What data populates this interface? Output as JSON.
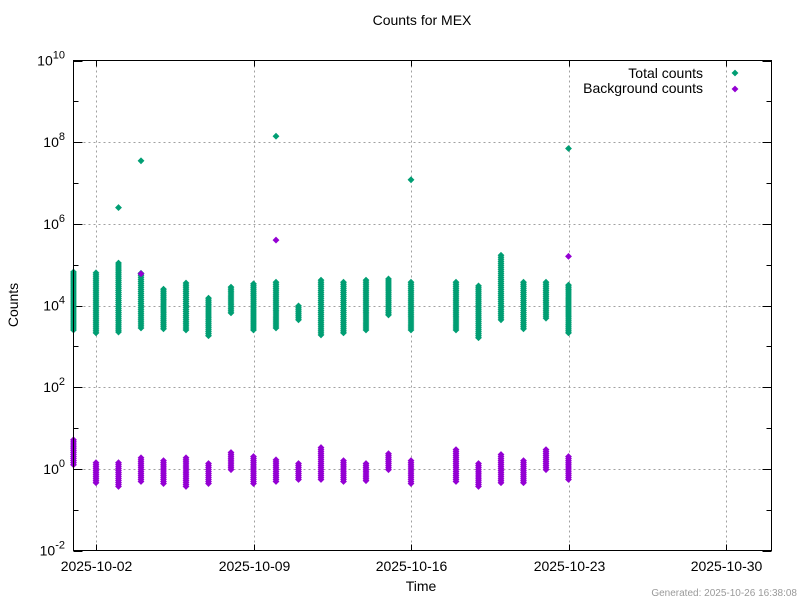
{
  "chart_data": {
    "type": "scatter",
    "title": "Counts for MEX",
    "xlabel": "Time",
    "ylabel": "Counts",
    "yscale": "log",
    "ylim": [
      0.01,
      10000000000
    ],
    "xlim": [
      "2025-10-01",
      "2025-11-01"
    ],
    "x_ticks": [
      {
        "date": "2025-10-02",
        "label": "2025-10-02"
      },
      {
        "date": "2025-10-09",
        "label": "2025-10-09"
      },
      {
        "date": "2025-10-16",
        "label": "2025-10-16"
      },
      {
        "date": "2025-10-23",
        "label": "2025-10-23"
      },
      {
        "date": "2025-10-30",
        "label": "2025-10-30"
      }
    ],
    "y_ticks": [
      {
        "exp": -2,
        "base": "10",
        "sup": "-2"
      },
      {
        "exp": 0,
        "base": "10",
        "sup": "0"
      },
      {
        "exp": 2,
        "base": "10",
        "sup": "2"
      },
      {
        "exp": 4,
        "base": "10",
        "sup": "4"
      },
      {
        "exp": 6,
        "base": "10",
        "sup": "6"
      },
      {
        "exp": 8,
        "base": "10",
        "sup": "8"
      },
      {
        "exp": 10,
        "base": "10",
        "sup": "10"
      }
    ],
    "grid": true,
    "legend_position": "top-right",
    "series": [
      {
        "name": "Total counts",
        "color": "#009e73"
      },
      {
        "name": "Background counts",
        "color": "#9400d3"
      }
    ],
    "clusters_log10": [
      {
        "date": "2025-10-01",
        "total": [
          3.4,
          4.82
        ],
        "background": [
          0.1,
          0.71
        ]
      },
      {
        "date": "2025-10-02",
        "total": [
          3.33,
          4.8
        ],
        "background": [
          -0.34,
          0.15
        ]
      },
      {
        "date": "2025-10-03",
        "total": [
          3.35,
          5.04
        ],
        "background": [
          -0.43,
          0.15
        ]
      },
      {
        "date": "2025-10-04",
        "total": [
          3.45,
          4.79
        ],
        "background": [
          -0.31,
          0.27
        ]
      },
      {
        "date": "2025-10-05",
        "total": [
          3.43,
          4.4
        ],
        "background": [
          -0.36,
          0.2
        ]
      },
      {
        "date": "2025-10-06",
        "total": [
          3.4,
          4.55
        ],
        "background": [
          -0.43,
          0.27
        ]
      },
      {
        "date": "2025-10-07",
        "total": [
          3.26,
          4.18
        ],
        "background": [
          -0.36,
          0.13
        ]
      },
      {
        "date": "2025-10-08",
        "total": [
          3.82,
          4.45
        ],
        "background": [
          -0.02,
          0.4
        ]
      },
      {
        "date": "2025-10-09",
        "total": [
          3.4,
          4.53
        ],
        "background": [
          -0.36,
          0.3
        ]
      },
      {
        "date": "2025-10-10",
        "total": [
          3.45,
          4.57
        ],
        "background": [
          -0.31,
          0.22
        ]
      },
      {
        "date": "2025-10-11",
        "total": [
          3.65,
          3.99
        ],
        "background": [
          -0.26,
          0.13
        ]
      },
      {
        "date": "2025-10-12",
        "total": [
          3.28,
          4.62
        ],
        "background": [
          -0.26,
          0.52
        ]
      },
      {
        "date": "2025-10-13",
        "total": [
          3.33,
          4.57
        ],
        "background": [
          -0.31,
          0.2
        ]
      },
      {
        "date": "2025-10-14",
        "total": [
          3.4,
          4.62
        ],
        "background": [
          -0.29,
          0.13
        ]
      },
      {
        "date": "2025-10-15",
        "total": [
          3.77,
          4.65
        ],
        "background": [
          -0.02,
          0.37
        ]
      },
      {
        "date": "2025-10-16",
        "total": [
          3.4,
          4.57
        ],
        "background": [
          -0.36,
          0.2
        ]
      },
      {
        "date": "2025-10-18",
        "total": [
          3.4,
          4.57
        ],
        "background": [
          -0.31,
          0.47
        ]
      },
      {
        "date": "2025-10-19",
        "total": [
          3.21,
          4.48
        ],
        "background": [
          -0.43,
          0.13
        ]
      },
      {
        "date": "2025-10-20",
        "total": [
          3.65,
          5.23
        ],
        "background": [
          -0.34,
          0.35
        ]
      },
      {
        "date": "2025-10-21",
        "total": [
          3.43,
          4.57
        ],
        "background": [
          -0.34,
          0.2
        ]
      },
      {
        "date": "2025-10-22",
        "total": [
          3.69,
          4.57
        ],
        "background": [
          -0.02,
          0.47
        ]
      },
      {
        "date": "2025-10-23",
        "total": [
          3.33,
          4.5
        ],
        "background": [
          -0.26,
          0.3
        ]
      }
    ],
    "outliers": [
      {
        "series": "Total counts",
        "date": "2025-10-03",
        "value": 2500000
      },
      {
        "series": "Total counts",
        "date": "2025-10-04",
        "value": 35000000
      },
      {
        "series": "Total counts",
        "date": "2025-10-10",
        "value": 140000000
      },
      {
        "series": "Total counts",
        "date": "2025-10-16",
        "value": 12000000
      },
      {
        "series": "Total counts",
        "date": "2025-10-23",
        "value": 70000000
      },
      {
        "series": "Background counts",
        "date": "2025-10-04",
        "value": 60000
      },
      {
        "series": "Background counts",
        "date": "2025-10-10",
        "value": 400000
      },
      {
        "series": "Background counts",
        "date": "2025-10-23",
        "value": 160000
      }
    ]
  },
  "footer": {
    "generated": "Generated: 2025-10-26 16:38:08"
  }
}
